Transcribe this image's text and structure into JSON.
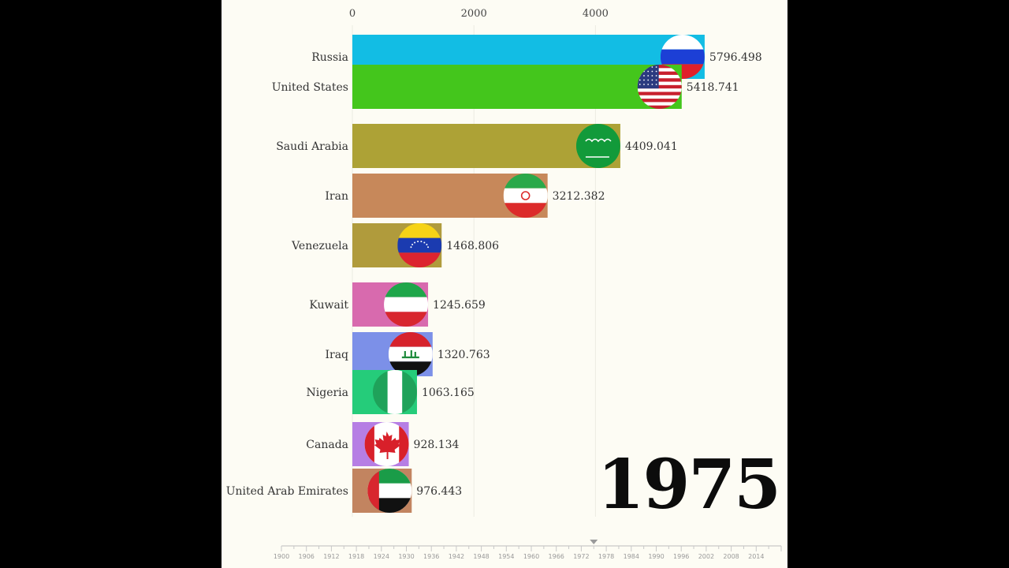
{
  "chart_data": {
    "type": "bar",
    "orientation": "horizontal",
    "title": "",
    "year": "1975",
    "x_ticks": [
      0,
      2000,
      4000
    ],
    "xlim": [
      0,
      7000
    ],
    "bars": [
      {
        "name": "Russia",
        "value": 5796.498,
        "value_label": "5796.498",
        "color": "#12bde4",
        "flag": "russia-flag-icon"
      },
      {
        "name": "United States",
        "value": 5418.741,
        "value_label": "5418.741",
        "color": "#44c61c",
        "flag": "usa-flag-icon"
      },
      {
        "name": "Saudi Arabia",
        "value": 4409.041,
        "value_label": "4409.041",
        "color": "#ada236",
        "flag": "saudi-flag-icon"
      },
      {
        "name": "Iran",
        "value": 3212.382,
        "value_label": "3212.382",
        "color": "#c7885a",
        "flag": "iran-flag-icon"
      },
      {
        "name": "Venezuela",
        "value": 1468.806,
        "value_label": "1468.806",
        "color": "#b09b3c",
        "flag": "venezuela-flag-icon"
      },
      {
        "name": "Kuwait",
        "value": 1245.659,
        "value_label": "1245.659",
        "color": "#d86aae",
        "flag": "kuwait-flag-icon"
      },
      {
        "name": "Iraq",
        "value": 1320.763,
        "value_label": "1320.763",
        "color": "#7c90e8",
        "flag": "iraq-flag-icon"
      },
      {
        "name": "Nigeria",
        "value": 1063.165,
        "value_label": "1063.165",
        "color": "#25cc7a",
        "flag": "nigeria-flag-icon"
      },
      {
        "name": "Canada",
        "value": 928.134,
        "value_label": "928.134",
        "color": "#b67ee4",
        "flag": "canada-flag-icon"
      },
      {
        "name": "United Arab Emirates",
        "value": 976.443,
        "value_label": "976.443",
        "color": "#c28460",
        "flag": "uae-flag-icon"
      }
    ],
    "timeline": {
      "labels": [
        "1900",
        "1906",
        "1912",
        "1918",
        "1924",
        "1930",
        "1936",
        "1942",
        "1948",
        "1954",
        "1960",
        "1966",
        "1972",
        "1978",
        "1984",
        "1990",
        "1996",
        "2002",
        "2008",
        "2014"
      ],
      "start": 1900,
      "end": 2020,
      "current": 1975
    }
  }
}
